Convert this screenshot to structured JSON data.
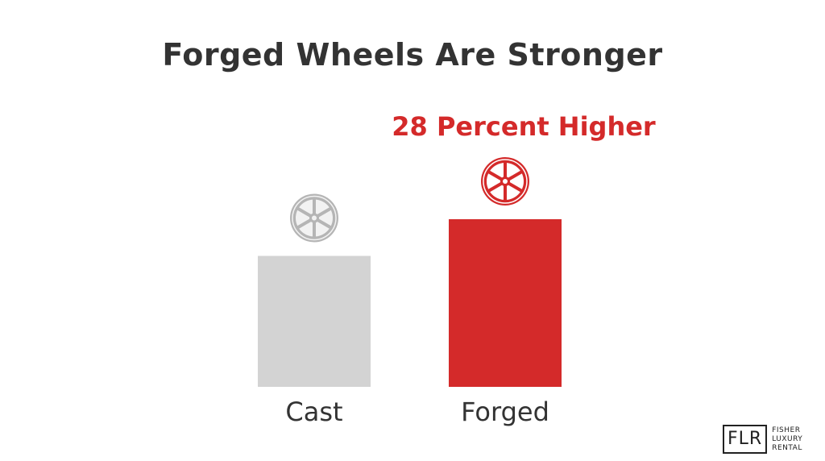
{
  "chart_data": {
    "type": "bar",
    "title": "Forged Wheels Are Stronger",
    "annotation": "28 Percent Higher",
    "categories": [
      "Cast",
      "Forged"
    ],
    "values": [
      100,
      128
    ],
    "ylim": [
      0,
      128
    ],
    "colors": [
      "#d3d3d3",
      "#d42a2a"
    ],
    "icons": [
      "wheel-icon",
      "wheel-icon"
    ],
    "grid": false,
    "legend": "none"
  },
  "logo": {
    "mark": "FLR",
    "lines": [
      "FISHER",
      "LUXURY",
      "RENTAL"
    ]
  }
}
